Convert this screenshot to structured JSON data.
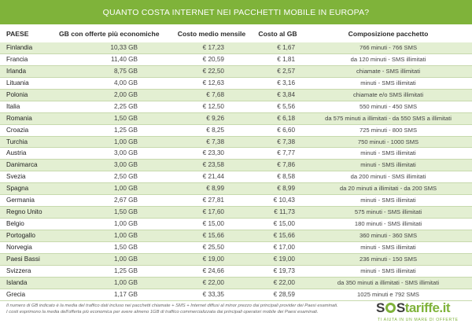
{
  "title": "QUANTO COSTA INTERNET NEI PACCHETTI MOBILE IN EUROPA?",
  "headers": {
    "paese": "PAESE",
    "gb": "GB con offerte più economiche",
    "costo": "Costo medio mensile",
    "costo_gb": "Costo al GB",
    "composizione": "Composizione pacchetto"
  },
  "rows": [
    {
      "paese": "Finlandia",
      "gb": "10,33 GB",
      "costo": "€ 17,23",
      "costo_gb": "€ 1,67",
      "composizione": "766 minuti - 766 SMS"
    },
    {
      "paese": "Francia",
      "gb": "11,40 GB",
      "costo": "€ 20,59",
      "costo_gb": "€ 1,81",
      "composizione": "da 120 minuti - SMS illimitati"
    },
    {
      "paese": "Irlanda",
      "gb": "8,75 GB",
      "costo": "€ 22,50",
      "costo_gb": "€ 2,57",
      "composizione": "chiamate - SMS illimitati"
    },
    {
      "paese": "Lituania",
      "gb": "4,00 GB",
      "costo": "€ 12,63",
      "costo_gb": "€ 3,16",
      "composizione": "minuti - SMS illimitati"
    },
    {
      "paese": "Polonia",
      "gb": "2,00 GB",
      "costo": "€ 7,68",
      "costo_gb": "€ 3,84",
      "composizione": "chiamate e/o SMS illimitati"
    },
    {
      "paese": "Italia",
      "gb": "2,25 GB",
      "costo": "€ 12,50",
      "costo_gb": "€ 5,56",
      "composizione": "550 minuti - 450 SMS"
    },
    {
      "paese": "Romania",
      "gb": "1,50 GB",
      "costo": "€ 9,26",
      "costo_gb": "€ 6,18",
      "composizione": "da 575 minuti a illimitati - da 550 SMS a illimitati"
    },
    {
      "paese": "Croazia",
      "gb": "1,25 GB",
      "costo": "€ 8,25",
      "costo_gb": "€ 6,60",
      "composizione": "725 minuti - 800 SMS"
    },
    {
      "paese": "Turchia",
      "gb": "1,00 GB",
      "costo": "€ 7,38",
      "costo_gb": "€ 7,38",
      "composizione": "750 minuti - 1000 SMS"
    },
    {
      "paese": "Austria",
      "gb": "3,00 GB",
      "costo": "€ 23,30",
      "costo_gb": "€ 7,77",
      "composizione": "minuti - SMS illimitati"
    },
    {
      "paese": "Danimarca",
      "gb": "3,00 GB",
      "costo": "€ 23,58",
      "costo_gb": "€ 7,86",
      "composizione": "minuti - SMS illimitati"
    },
    {
      "paese": "Svezia",
      "gb": "2,50 GB",
      "costo": "€ 21,44",
      "costo_gb": "€ 8,58",
      "composizione": "da 200 minuti - SMS illimitati"
    },
    {
      "paese": "Spagna",
      "gb": "1,00 GB",
      "costo": "€ 8,99",
      "costo_gb": "€ 8,99",
      "composizione": "da 20 minuti a illimitati - da 200 SMS"
    },
    {
      "paese": "Germania",
      "gb": "2,67 GB",
      "costo": "€ 27,81",
      "costo_gb": "€ 10,43",
      "composizione": "minuti - SMS illimitati"
    },
    {
      "paese": "Regno Unito",
      "gb": "1,50 GB",
      "costo": "€ 17,60",
      "costo_gb": "€ 11,73",
      "composizione": "575 minuti - SMS illimitati"
    },
    {
      "paese": "Belgio",
      "gb": "1,00 GB",
      "costo": "€ 15,00",
      "costo_gb": "€ 15,00",
      "composizione": "180 minuti - SMS illimitati"
    },
    {
      "paese": "Portogallo",
      "gb": "1,00 GB",
      "costo": "€ 15,66",
      "costo_gb": "€ 15,66",
      "composizione": "360 minuti - 360 SMS"
    },
    {
      "paese": "Norvegia",
      "gb": "1,50 GB",
      "costo": "€ 25,50",
      "costo_gb": "€ 17,00",
      "composizione": "minuti - SMS illimitati"
    },
    {
      "paese": "Paesi Bassi",
      "gb": "1,00 GB",
      "costo": "€ 19,00",
      "costo_gb": "€ 19,00",
      "composizione": "236 minuti - 150 SMS"
    },
    {
      "paese": "Svizzera",
      "gb": "1,25 GB",
      "costo": "€ 24,66",
      "costo_gb": "€ 19,73",
      "composizione": "minuti - SMS illimitati"
    },
    {
      "paese": "Islanda",
      "gb": "1,00 GB",
      "costo": "€ 22,00",
      "costo_gb": "€ 22,00",
      "composizione": "da 350 minuti a illimitati - SMS illimitati"
    },
    {
      "paese": "Grecia",
      "gb": "1,17 GB",
      "costo": "€ 33,35",
      "costo_gb": "€ 28,59",
      "composizione": "1025 minuti e 792 SMS"
    }
  ],
  "notes": [
    "Il numero di GB indicato è la media del traffico dati incluso nei pacchetti chiamate + SMS + Internet diffusi al minor prezzo dai principali provider dei Paesi esaminati.",
    "I costi esprimono la media dell'offerta più economica per avere almeno 1GB di traffico commercializzata dai principali operatori mobile dei Paesi esaminati."
  ],
  "logo": {
    "part1": "S",
    "part2": "S",
    "accent": "tariffe.it",
    "tagline": "TI AIUTA IN UN MARE DI OFFERTE"
  },
  "colors": {
    "brand_green": "#7fb33a",
    "row_stripe": "#e3efd2",
    "row_border": "#c7d9ad"
  }
}
